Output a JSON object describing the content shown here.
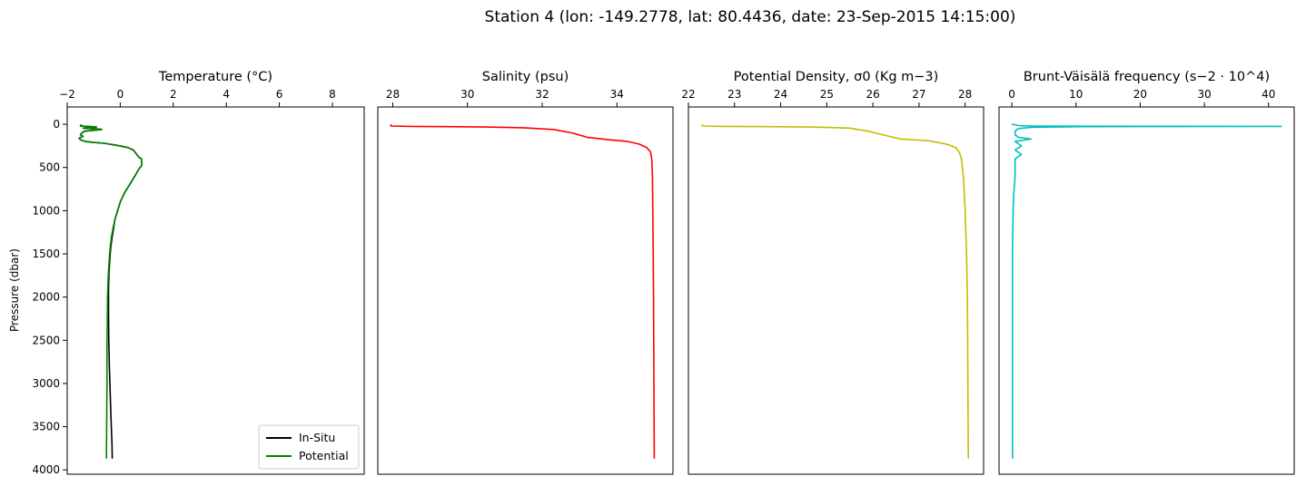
{
  "figure": {
    "title": "Station 4 (lon: -149.2778, lat: 80.4436, date: 23-Sep-2015 14:15:00)"
  },
  "y_axis": {
    "label": "Pressure (dbar)",
    "range": [
      4050,
      -200
    ],
    "ticks": [
      0,
      500,
      1000,
      1500,
      2000,
      2500,
      3000,
      3500,
      4000
    ],
    "inverted": true
  },
  "chart_data": [
    {
      "type": "line",
      "title": "Temperature (°C)",
      "xaxis_position": "top",
      "xlim": [
        -2,
        9.2
      ],
      "xticks": [
        -2,
        0,
        2,
        4,
        6,
        8
      ],
      "xtick_labels": [
        "−2",
        "0",
        "2",
        "4",
        "6",
        "8"
      ],
      "legend": {
        "position": "lower-right",
        "entries": [
          "In-Situ",
          "Potential"
        ]
      },
      "series": [
        {
          "name": "In-Situ",
          "color": "#000000",
          "points": [
            [
              -1.5,
              5
            ],
            [
              -1.45,
              15
            ],
            [
              -1.5,
              20
            ],
            [
              -0.9,
              30
            ],
            [
              -1.2,
              40
            ],
            [
              -1.4,
              45
            ],
            [
              -0.8,
              55
            ],
            [
              -0.7,
              60
            ],
            [
              -1.35,
              80
            ],
            [
              -1.45,
              100
            ],
            [
              -1.5,
              120
            ],
            [
              -1.4,
              140
            ],
            [
              -1.55,
              160
            ],
            [
              -1.5,
              180
            ],
            [
              -1.3,
              200
            ],
            [
              -1.0,
              210
            ],
            [
              -0.6,
              220
            ],
            [
              -0.2,
              240
            ],
            [
              0.3,
              270
            ],
            [
              0.5,
              300
            ],
            [
              0.6,
              340
            ],
            [
              0.7,
              380
            ],
            [
              0.8,
              400
            ],
            [
              0.8,
              430
            ],
            [
              0.82,
              450
            ],
            [
              0.8,
              480
            ],
            [
              0.7,
              520
            ],
            [
              0.55,
              600
            ],
            [
              0.35,
              700
            ],
            [
              0.15,
              800
            ],
            [
              0.0,
              900
            ],
            [
              -0.1,
              1000
            ],
            [
              -0.2,
              1100
            ],
            [
              -0.25,
              1200
            ],
            [
              -0.3,
              1300
            ],
            [
              -0.35,
              1400
            ],
            [
              -0.38,
              1500
            ],
            [
              -0.4,
              1600
            ],
            [
              -0.42,
              1700
            ],
            [
              -0.43,
              1800
            ],
            [
              -0.44,
              1900
            ],
            [
              -0.44,
              2000
            ],
            [
              -0.44,
              2200
            ],
            [
              -0.43,
              2500
            ],
            [
              -0.41,
              2800
            ],
            [
              -0.38,
              3100
            ],
            [
              -0.35,
              3400
            ],
            [
              -0.31,
              3700
            ],
            [
              -0.3,
              3870
            ]
          ]
        },
        {
          "name": "Potential",
          "color": "#008000",
          "points": [
            [
              -1.5,
              5
            ],
            [
              -1.45,
              15
            ],
            [
              -1.5,
              20
            ],
            [
              -0.9,
              30
            ],
            [
              -1.2,
              40
            ],
            [
              -1.4,
              45
            ],
            [
              -0.8,
              55
            ],
            [
              -0.7,
              60
            ],
            [
              -1.35,
              80
            ],
            [
              -1.45,
              100
            ],
            [
              -1.5,
              120
            ],
            [
              -1.4,
              140
            ],
            [
              -1.55,
              160
            ],
            [
              -1.5,
              180
            ],
            [
              -1.3,
              200
            ],
            [
              -1.0,
              210
            ],
            [
              -0.6,
              220
            ],
            [
              -0.2,
              240
            ],
            [
              0.3,
              270
            ],
            [
              0.5,
              300
            ],
            [
              0.6,
              340
            ],
            [
              0.7,
              380
            ],
            [
              0.8,
              400
            ],
            [
              0.8,
              430
            ],
            [
              0.82,
              450
            ],
            [
              0.8,
              480
            ],
            [
              0.7,
              520
            ],
            [
              0.55,
              600
            ],
            [
              0.35,
              700
            ],
            [
              0.15,
              800
            ],
            [
              0.0,
              900
            ],
            [
              -0.1,
              1000
            ],
            [
              -0.2,
              1100
            ],
            [
              -0.27,
              1200
            ],
            [
              -0.33,
              1300
            ],
            [
              -0.37,
              1400
            ],
            [
              -0.4,
              1500
            ],
            [
              -0.42,
              1600
            ],
            [
              -0.44,
              1700
            ],
            [
              -0.46,
              1800
            ],
            [
              -0.47,
              1900
            ],
            [
              -0.48,
              2000
            ],
            [
              -0.49,
              2300
            ],
            [
              -0.5,
              2600
            ],
            [
              -0.5,
              3000
            ],
            [
              -0.51,
              3400
            ],
            [
              -0.52,
              3870
            ]
          ]
        }
      ]
    },
    {
      "type": "line",
      "title": "Salinity (psu)",
      "xaxis_position": "top",
      "xlim": [
        27.6,
        35.5
      ],
      "xticks": [
        28,
        30,
        32,
        34
      ],
      "xtick_labels": [
        "28",
        "30",
        "32",
        "34"
      ],
      "series": [
        {
          "color": "#ff0000",
          "points": [
            [
              27.95,
              0
            ],
            [
              27.95,
              10
            ],
            [
              27.95,
              20
            ],
            [
              28.5,
              25
            ],
            [
              29.5,
              28
            ],
            [
              30.5,
              32
            ],
            [
              31.5,
              40
            ],
            [
              32.3,
              60
            ],
            [
              32.8,
              100
            ],
            [
              33.2,
              150
            ],
            [
              33.8,
              180
            ],
            [
              34.3,
              200
            ],
            [
              34.6,
              230
            ],
            [
              34.8,
              270
            ],
            [
              34.9,
              320
            ],
            [
              34.93,
              400
            ],
            [
              34.95,
              600
            ],
            [
              34.96,
              1000
            ],
            [
              34.97,
              1500
            ],
            [
              34.98,
              2000
            ],
            [
              34.99,
              3000
            ],
            [
              35.0,
              3870
            ]
          ]
        }
      ]
    },
    {
      "type": "line",
      "title": "Potential Density, σ0 (Kg m−3)",
      "xaxis_position": "top",
      "xlim": [
        22,
        28.4
      ],
      "xticks": [
        22,
        23,
        24,
        25,
        26,
        27,
        28
      ],
      "xtick_labels": [
        "22",
        "23",
        "24",
        "25",
        "26",
        "27",
        "28"
      ],
      "series": [
        {
          "color": "#bfbf00",
          "points": [
            [
              22.3,
              0
            ],
            [
              22.3,
              10
            ],
            [
              22.3,
              20
            ],
            [
              22.8,
              25
            ],
            [
              23.8,
              28
            ],
            [
              24.7,
              32
            ],
            [
              25.5,
              45
            ],
            [
              25.9,
              80
            ],
            [
              26.2,
              120
            ],
            [
              26.6,
              170
            ],
            [
              27.2,
              190
            ],
            [
              27.6,
              230
            ],
            [
              27.8,
              270
            ],
            [
              27.88,
              330
            ],
            [
              27.92,
              400
            ],
            [
              27.96,
              600
            ],
            [
              28.0,
              1000
            ],
            [
              28.03,
              1500
            ],
            [
              28.05,
              2000
            ],
            [
              28.06,
              3000
            ],
            [
              28.07,
              3870
            ]
          ]
        }
      ]
    },
    {
      "type": "line",
      "title": "Brunt-Väisälä frequency (s−2 · 10^4)",
      "xaxis_position": "top",
      "xlim": [
        -2,
        44
      ],
      "xticks": [
        0,
        10,
        20,
        30,
        40
      ],
      "xtick_labels": [
        "0",
        "10",
        "20",
        "30",
        "40"
      ],
      "series": [
        {
          "color": "#00bfbf",
          "points": [
            [
              0,
              0
            ],
            [
              0.5,
              5
            ],
            [
              1,
              15
            ],
            [
              3,
              20
            ],
            [
              12,
              22
            ],
            [
              42,
              25
            ],
            [
              11,
              28
            ],
            [
              3,
              35
            ],
            [
              1,
              50
            ],
            [
              0.5,
              80
            ],
            [
              0.5,
              120
            ],
            [
              1,
              150
            ],
            [
              3,
              170
            ],
            [
              0.5,
              200
            ],
            [
              1.5,
              250
            ],
            [
              0.5,
              300
            ],
            [
              1.5,
              350
            ],
            [
              0.5,
              400
            ],
            [
              0.5,
              500
            ],
            [
              0.5,
              600
            ],
            [
              0.3,
              800
            ],
            [
              0.2,
              1000
            ],
            [
              0.1,
              1500
            ],
            [
              0.1,
              2000
            ],
            [
              0.1,
              3000
            ],
            [
              0.1,
              3870
            ]
          ]
        }
      ]
    }
  ]
}
